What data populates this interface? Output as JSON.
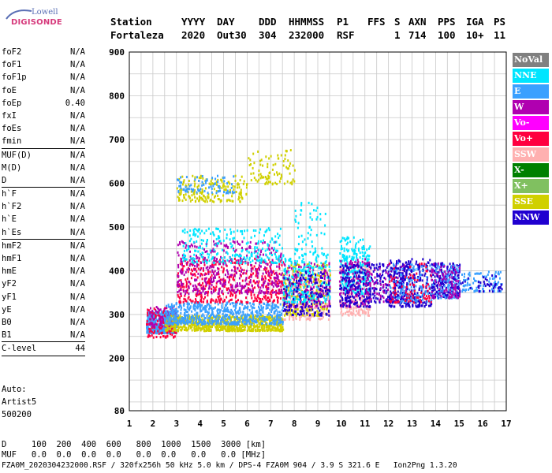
{
  "logo": {
    "brand": "Lowell",
    "name": "DIGISONDE"
  },
  "header": {
    "row1": [
      "Station",
      "YYYY",
      "DAY",
      "DDD",
      "HHMMSS",
      "P1",
      "FFS",
      "S",
      "AXN",
      "PPS",
      "IGA",
      "PS"
    ],
    "row2": [
      "Fortaleza",
      "2020",
      "Out30",
      "304",
      "232000",
      "RSF",
      "",
      "1",
      "714",
      "100",
      "10+",
      "11"
    ]
  },
  "params_group1": [
    {
      "name": "foF2",
      "value": "N/A"
    },
    {
      "name": "foF1",
      "value": "N/A"
    },
    {
      "name": "foF1p",
      "value": "N/A"
    },
    {
      "name": "foE",
      "value": "N/A"
    },
    {
      "name": "foEp",
      "value": "0.40"
    },
    {
      "name": "fxI",
      "value": "N/A"
    },
    {
      "name": "foEs",
      "value": "N/A"
    },
    {
      "name": "fmin",
      "value": "N/A"
    }
  ],
  "params_group2": [
    {
      "name": "MUF(D)",
      "value": "N/A"
    },
    {
      "name": "M(D)",
      "value": "N/A"
    },
    {
      "name": "D",
      "value": "N/A"
    }
  ],
  "params_group3": [
    {
      "name": "h`F",
      "value": "N/A"
    },
    {
      "name": "h`F2",
      "value": "N/A"
    },
    {
      "name": "h`E",
      "value": "N/A"
    },
    {
      "name": "h`Es",
      "value": "N/A"
    }
  ],
  "params_group4": [
    {
      "name": "hmF2",
      "value": "N/A"
    },
    {
      "name": "hmF1",
      "value": "N/A"
    },
    {
      "name": "hmE",
      "value": "N/A"
    },
    {
      "name": "yF2",
      "value": "N/A"
    },
    {
      "name": "yF1",
      "value": "N/A"
    },
    {
      "name": "yE",
      "value": "N/A"
    },
    {
      "name": "B0",
      "value": "N/A"
    },
    {
      "name": "B1",
      "value": "N/A"
    }
  ],
  "clevel": {
    "name": "C-level",
    "value": "44"
  },
  "auto": {
    "line1": "Auto:",
    "line2": "Artist5",
    "line3": "500200"
  },
  "legend": [
    {
      "label": "NoVal",
      "color": "#808080"
    },
    {
      "label": "NNE",
      "color": "#00e5ff"
    },
    {
      "label": "E",
      "color": "#3aa0ff"
    },
    {
      "label": "W",
      "color": "#b000b0"
    },
    {
      "label": "Vo-",
      "color": "#ff00ff"
    },
    {
      "label": "Vo+",
      "color": "#ff0040"
    },
    {
      "label": "SSW",
      "color": "#ffb0b0"
    },
    {
      "label": "X-",
      "color": "#008000"
    },
    {
      "label": "X+",
      "color": "#80c060"
    },
    {
      "label": "SSE",
      "color": "#d0d000"
    },
    {
      "label": "NNW",
      "color": "#2000d0"
    }
  ],
  "footer": {
    "d_row": "D     100  200  400  600   800  1000  1500  3000 [km]",
    "muf_row": "MUF   0.0  0.0  0.0  0.0   0.0  0.0   0.0   0.0 [MHz]",
    "file_row": "FZA0M_2020304232000.RSF / 320fx256h 50 kHz 5.0 km / DPS-4 FZA0M 904 / 3.9 S 321.6 E   Ion2Png 1.3.20"
  },
  "chart_data": {
    "type": "scatter",
    "xlabel": "",
    "ylabel": "",
    "xlim": [
      1,
      17
    ],
    "ylim": [
      80,
      900
    ],
    "xticks": [
      1,
      2,
      3,
      4,
      5,
      6,
      7,
      8,
      9,
      10,
      11,
      12,
      13,
      14,
      15,
      16,
      17
    ],
    "yticks": [
      80,
      200,
      300,
      400,
      500,
      600,
      700,
      800,
      900
    ],
    "grid": true,
    "clusters": [
      {
        "x": [
          1.7,
          3.0
        ],
        "y": [
          260,
          310
        ],
        "series": "E",
        "n": 500
      },
      {
        "x": [
          1.7,
          3.0
        ],
        "y": [
          250,
          320
        ],
        "series": "Vo+",
        "n": 120
      },
      {
        "x": [
          1.8,
          3.0
        ],
        "y": [
          275,
          320
        ],
        "series": "W",
        "n": 90
      },
      {
        "x": [
          2.5,
          7.5
        ],
        "y": [
          265,
          300
        ],
        "series": "SSE",
        "n": 700
      },
      {
        "x": [
          2.5,
          7.5
        ],
        "y": [
          280,
          330
        ],
        "series": "E",
        "n": 600
      },
      {
        "x": [
          3.0,
          7.5
        ],
        "y": [
          330,
          430
        ],
        "series": "Vo+",
        "n": 450
      },
      {
        "x": [
          3.0,
          7.5
        ],
        "y": [
          350,
          470
        ],
        "series": "W",
        "n": 450
      },
      {
        "x": [
          3.2,
          7.5
        ],
        "y": [
          420,
          500
        ],
        "series": "NNE",
        "n": 250
      },
      {
        "x": [
          3.0,
          6.0
        ],
        "y": [
          560,
          620
        ],
        "series": "SSE",
        "n": 180
      },
      {
        "x": [
          3.0,
          5.5
        ],
        "y": [
          580,
          620
        ],
        "series": "E",
        "n": 80
      },
      {
        "x": [
          6.0,
          8.0
        ],
        "y": [
          600,
          680
        ],
        "series": "SSE",
        "n": 90
      },
      {
        "x": [
          7.5,
          9.5
        ],
        "y": [
          290,
          400
        ],
        "series": "SSW",
        "n": 250
      },
      {
        "x": [
          7.5,
          9.5
        ],
        "y": [
          300,
          420
        ],
        "series": "SSE",
        "n": 250
      },
      {
        "x": [
          7.5,
          9.5
        ],
        "y": [
          320,
          420
        ],
        "series": "W",
        "n": 200
      },
      {
        "x": [
          7.5,
          9.5
        ],
        "y": [
          330,
          440
        ],
        "series": "NNE",
        "n": 200
      },
      {
        "x": [
          7.5,
          9.5
        ],
        "y": [
          300,
          400
        ],
        "series": "NNW",
        "n": 150
      },
      {
        "x": [
          8.0,
          9.3
        ],
        "y": [
          440,
          560
        ],
        "series": "NNE",
        "n": 60
      },
      {
        "x": [
          9.9,
          11.2
        ],
        "y": [
          300,
          420
        ],
        "series": "SSW",
        "n": 200
      },
      {
        "x": [
          9.9,
          11.2
        ],
        "y": [
          350,
          480
        ],
        "series": "NNE",
        "n": 250
      },
      {
        "x": [
          9.9,
          11.2
        ],
        "y": [
          320,
          430
        ],
        "series": "W",
        "n": 150
      },
      {
        "x": [
          9.9,
          11.2
        ],
        "y": [
          320,
          420
        ],
        "series": "NNW",
        "n": 150
      },
      {
        "x": [
          11.0,
          12.8
        ],
        "y": [
          330,
          420
        ],
        "series": "NNW",
        "n": 180
      },
      {
        "x": [
          11.0,
          12.8
        ],
        "y": [
          330,
          420
        ],
        "series": "W",
        "n": 80
      },
      {
        "x": [
          12.0,
          13.8
        ],
        "y": [
          320,
          430
        ],
        "series": "NNW",
        "n": 260
      },
      {
        "x": [
          12.0,
          13.8
        ],
        "y": [
          330,
          420
        ],
        "series": "E",
        "n": 120
      },
      {
        "x": [
          12.0,
          13.8
        ],
        "y": [
          330,
          420
        ],
        "series": "Vo+",
        "n": 80
      },
      {
        "x": [
          13.8,
          15.0
        ],
        "y": [
          340,
          420
        ],
        "series": "NNW",
        "n": 220
      },
      {
        "x": [
          13.8,
          15.0
        ],
        "y": [
          340,
          420
        ],
        "series": "E",
        "n": 100
      },
      {
        "x": [
          13.8,
          15.0
        ],
        "y": [
          340,
          420
        ],
        "series": "W",
        "n": 80
      },
      {
        "x": [
          15.0,
          16.8
        ],
        "y": [
          355,
          400
        ],
        "series": "E",
        "n": 90
      },
      {
        "x": [
          15.0,
          16.8
        ],
        "y": [
          355,
          400
        ],
        "series": "NNW",
        "n": 40
      }
    ]
  }
}
